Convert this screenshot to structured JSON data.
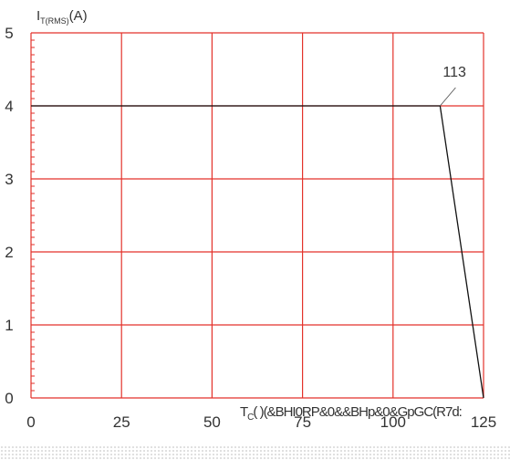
{
  "chart_data": {
    "type": "line",
    "title": "",
    "ylabel": {
      "main": "I",
      "sub": "T(RMS)",
      "unit": "(A)"
    },
    "xlabel": {
      "main": "T",
      "sub": "C",
      "rest": "(   )(&BHI0RP&0&&BHp&0&GpGC(R7d:"
    },
    "xlim": [
      0,
      125
    ],
    "ylim": [
      0,
      5
    ],
    "xticks": [
      0,
      25,
      50,
      75,
      100,
      125
    ],
    "yticks": [
      0,
      1,
      2,
      3,
      4,
      5
    ],
    "grid": true,
    "grid_color": "#e3322b",
    "line_color": "#111111",
    "series": [
      {
        "x": [
          0,
          113,
          125
        ],
        "y": [
          4,
          4,
          0
        ]
      }
    ],
    "annotations": [
      {
        "text": "113",
        "x": 113,
        "y": 4
      }
    ]
  }
}
